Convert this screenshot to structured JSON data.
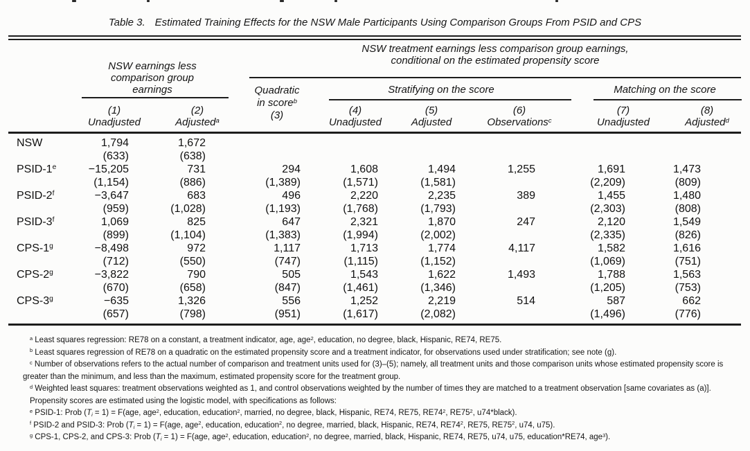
{
  "colors": {
    "ink": "#141414",
    "paper": "#fcfcfb",
    "rule": "#1c1c1c"
  },
  "title": {
    "label": "Table 3.",
    "text": "Estimated Training Effects for the NSW Male Participants Using Comparison Groups From PSID and CPS"
  },
  "header": {
    "left_group_lines": [
      "NSW earnings less",
      "comparison group",
      "earnings"
    ],
    "right_group_lines": [
      "NSW treatment earnings less comparison group earnings,",
      "conditional on the estimated propensity score"
    ],
    "stratifying": "Stratifying on the score",
    "matching": "Matching on the score",
    "quadratic_lines_html": [
      "Quadratic",
      "in score<sup>b</sup>",
      "(3)"
    ]
  },
  "columns": [
    {
      "num": "(1)",
      "label_html": "Unadjusted"
    },
    {
      "num": "(2)",
      "label_html": "Adjusted<sup>a</sup>"
    },
    {
      "num": "(4)",
      "label_html": "Unadjusted"
    },
    {
      "num": "(5)",
      "label_html": "Adjusted"
    },
    {
      "num": "(6)",
      "label_html": "Observations<sup>c</sup>"
    },
    {
      "num": "(7)",
      "label_html": "Unadjusted"
    },
    {
      "num": "(8)",
      "label_html": "Adjusted<sup>d</sup>"
    }
  ],
  "rows": [
    {
      "label_html": "NSW",
      "values": [
        "1,794",
        "1,672",
        "",
        "",
        "",
        "",
        "",
        ""
      ],
      "ses": [
        "(633)",
        "(638)",
        "",
        "",
        "",
        "",
        "",
        ""
      ]
    },
    {
      "label_html": "PSID-1<sup>e</sup>",
      "values": [
        "−15,205",
        "731",
        "294",
        "1,608",
        "1,494",
        "1,255",
        "1,691",
        "1,473"
      ],
      "ses": [
        "(1,154)",
        "(886)",
        "(1,389)",
        "(1,571)",
        "(1,581)",
        "",
        "(2,209)",
        "(809)"
      ]
    },
    {
      "label_html": "PSID-2<sup>f</sup>",
      "values": [
        "−3,647",
        "683",
        "496",
        "2,220",
        "2,235",
        "389",
        "1,455",
        "1,480"
      ],
      "ses": [
        "(959)",
        "(1,028)",
        "(1,193)",
        "(1,768)",
        "(1,793)",
        "",
        "(2,303)",
        "(808)"
      ]
    },
    {
      "label_html": "PSID-3<sup>f</sup>",
      "values": [
        "1,069",
        "825",
        "647",
        "2,321",
        "1,870",
        "247",
        "2,120",
        "1,549"
      ],
      "ses": [
        "(899)",
        "(1,104)",
        "(1,383)",
        "(1,994)",
        "(2,002)",
        "",
        "(2,335)",
        "(826)"
      ]
    },
    {
      "label_html": "CPS-1<sup>g</sup>",
      "values": [
        "−8,498",
        "972",
        "1,117",
        "1,713",
        "1,774",
        "4,117",
        "1,582",
        "1,616"
      ],
      "ses": [
        "(712)",
        "(550)",
        "(747)",
        "(1,115)",
        "(1,152)",
        "",
        "(1,069)",
        "(751)"
      ]
    },
    {
      "label_html": "CPS-2<sup>g</sup>",
      "values": [
        "−3,822",
        "790",
        "505",
        "1,543",
        "1,622",
        "1,493",
        "1,788",
        "1,563"
      ],
      "ses": [
        "(670)",
        "(658)",
        "(847)",
        "(1,461)",
        "(1,346)",
        "",
        "(1,205)",
        "(753)"
      ]
    },
    {
      "label_html": "CPS-3<sup>g</sup>",
      "values": [
        "−635",
        "1,326",
        "556",
        "1,252",
        "2,219",
        "514",
        "587",
        "662"
      ],
      "ses": [
        "(657)",
        "(798)",
        "(951)",
        "(1,617)",
        "(2,082)",
        "",
        "(1,496)",
        "(776)"
      ]
    }
  ],
  "footnotes": [
    {
      "marker": "a",
      "html": "Least squares regression: RE78 on a constant, a treatment indicator, age, age<sup>2</sup>, education, no degree, black, Hispanic, RE74, RE75."
    },
    {
      "marker": "b",
      "html": "Least squares regression of RE78 on a quadratic on the estimated propensity score and a treatment indicator, for observations used under stratification; see note (g)."
    },
    {
      "marker": "c",
      "html": "Number of observations refers to the actual number of comparison and treatment units used for (3)–(5); namely, all treatment units and those comparison units whose estimated propensity score is greater than the minimum, and less than the maximum, estimated propensity score for the treatment group."
    },
    {
      "marker": "d",
      "html": "Weighted least squares: treatment observations weighted as 1, and control observations weighted by the number of times they are matched to a treatment observation [same covariates as (a)]."
    },
    {
      "marker": "",
      "html": "Propensity scores are estimated using the logistic model, with specifications as follows:"
    },
    {
      "marker": "e",
      "html": "PSID-1: Prob (<i>T<sub>i</sub></i> = 1) = F(age, age<sup>2</sup>, education, education<sup>2</sup>, married, no degree, black, Hispanic, RE74, RE75, RE74<sup>2</sup>, RE75<sup>2</sup>, u74*black)."
    },
    {
      "marker": "f",
      "html": "PSID-2 and PSID-3: Prob (<i>T<sub>i</sub></i> = 1) = F(age, age<sup>2</sup>, education, education<sup>2</sup>, no degree, married, black, Hispanic, RE74, RE74<sup>2</sup>, RE75, RE75<sup>2</sup>, u74, u75)."
    },
    {
      "marker": "g",
      "html": "CPS-1, CPS-2, and CPS-3: Prob (<i>T<sub>i</sub></i> = 1) = F(age, age<sup>2</sup>, education, education<sup>2</sup>, no degree, married, black, Hispanic, RE74, RE75, u74, u75, education*RE74, age<sup>3</sup>)."
    }
  ]
}
